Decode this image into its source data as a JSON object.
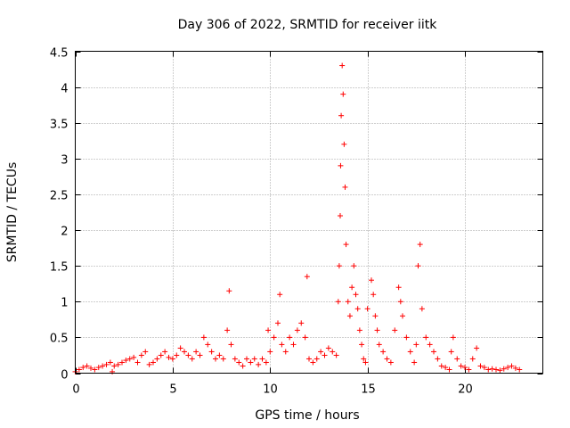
{
  "chart_data": {
    "type": "scatter",
    "title": "Day 306 of 2022, SRMTID for receiver iitk",
    "xlabel": "GPS time / hours",
    "ylabel": "SRMTID / TECUs",
    "xlim": [
      0,
      24
    ],
    "ylim": [
      0,
      4.5
    ],
    "xticks": [
      0,
      5,
      10,
      15,
      20
    ],
    "xtick_labels": [
      "0",
      "5",
      "10",
      "15",
      "20"
    ],
    "yticks": [
      0,
      0.5,
      1,
      1.5,
      2,
      2.5,
      3,
      3.5,
      4,
      4.5
    ],
    "ytick_labels": [
      "0",
      "0.5",
      "1",
      "1.5",
      "2",
      "2.5",
      "3",
      "3.5",
      "4",
      "4.5"
    ],
    "grid": true,
    "marker": "plus",
    "color": "#ff0000",
    "series": [
      {
        "name": "SRMTID",
        "x": [
          0.0,
          0.2,
          0.4,
          0.6,
          0.8,
          1.0,
          1.2,
          1.4,
          1.6,
          1.8,
          1.9,
          2.0,
          2.2,
          2.4,
          2.6,
          2.8,
          3.0,
          3.2,
          3.4,
          3.6,
          3.8,
          4.0,
          4.2,
          4.4,
          4.6,
          4.8,
          5.0,
          5.2,
          5.4,
          5.6,
          5.8,
          6.0,
          6.2,
          6.4,
          6.6,
          6.8,
          7.0,
          7.2,
          7.4,
          7.6,
          7.8,
          7.9,
          8.0,
          8.2,
          8.4,
          8.6,
          8.8,
          9.0,
          9.2,
          9.4,
          9.6,
          9.8,
          9.9,
          10.0,
          10.2,
          10.4,
          10.5,
          10.6,
          10.8,
          11.0,
          11.2,
          11.4,
          11.6,
          11.8,
          11.9,
          12.0,
          12.2,
          12.4,
          12.6,
          12.8,
          13.0,
          13.2,
          13.4,
          13.5,
          13.55,
          13.6,
          13.62,
          13.65,
          13.7,
          13.75,
          13.8,
          13.85,
          13.9,
          14.0,
          14.1,
          14.2,
          14.3,
          14.4,
          14.5,
          14.6,
          14.7,
          14.8,
          14.9,
          15.0,
          15.2,
          15.3,
          15.4,
          15.5,
          15.6,
          15.8,
          16.0,
          16.2,
          16.4,
          16.6,
          16.7,
          16.8,
          17.0,
          17.2,
          17.4,
          17.5,
          17.6,
          17.7,
          17.8,
          18.0,
          18.2,
          18.4,
          18.6,
          18.8,
          19.0,
          19.2,
          19.3,
          19.4,
          19.6,
          19.8,
          20.0,
          20.2,
          20.4,
          20.6,
          20.8,
          21.0,
          21.2,
          21.4,
          21.6,
          21.8,
          22.0,
          22.2,
          22.4,
          22.6,
          22.8
        ],
        "values": [
          0.02,
          0.05,
          0.08,
          0.1,
          0.07,
          0.05,
          0.08,
          0.1,
          0.12,
          0.15,
          0.02,
          0.1,
          0.12,
          0.15,
          0.18,
          0.2,
          0.22,
          0.15,
          0.25,
          0.3,
          0.12,
          0.15,
          0.2,
          0.25,
          0.3,
          0.22,
          0.2,
          0.25,
          0.35,
          0.3,
          0.25,
          0.2,
          0.3,
          0.25,
          0.5,
          0.4,
          0.3,
          0.2,
          0.25,
          0.2,
          0.6,
          1.15,
          0.4,
          0.2,
          0.15,
          0.1,
          0.2,
          0.15,
          0.2,
          0.12,
          0.2,
          0.15,
          0.6,
          0.3,
          0.5,
          0.7,
          1.1,
          0.4,
          0.3,
          0.5,
          0.4,
          0.6,
          0.7,
          0.5,
          1.35,
          0.2,
          0.15,
          0.2,
          0.3,
          0.25,
          0.35,
          0.3,
          0.25,
          1.0,
          1.5,
          2.2,
          2.9,
          3.6,
          4.3,
          3.9,
          3.2,
          2.6,
          1.8,
          1.0,
          0.8,
          1.2,
          1.5,
          1.1,
          0.9,
          0.6,
          0.4,
          0.2,
          0.15,
          0.9,
          1.3,
          1.1,
          0.8,
          0.6,
          0.4,
          0.3,
          0.2,
          0.15,
          0.6,
          1.2,
          1.0,
          0.8,
          0.5,
          0.3,
          0.15,
          0.4,
          1.5,
          1.8,
          0.9,
          0.5,
          0.4,
          0.3,
          0.2,
          0.1,
          0.08,
          0.05,
          0.3,
          0.5,
          0.2,
          0.1,
          0.08,
          0.05,
          0.2,
          0.35,
          0.1,
          0.08,
          0.05,
          0.06,
          0.05,
          0.04,
          0.06,
          0.08,
          0.1,
          0.07,
          0.05
        ]
      }
    ]
  }
}
